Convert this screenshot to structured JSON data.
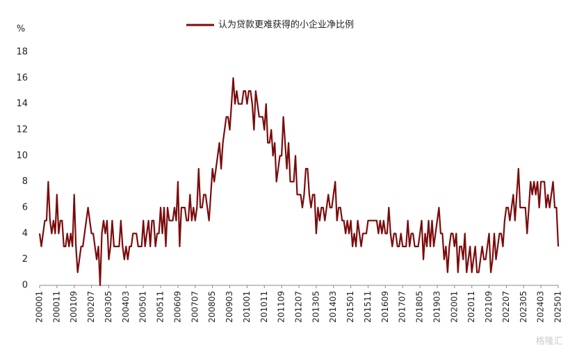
{
  "chart_data": {
    "type": "line",
    "ylabel": "%",
    "watermark": "格隆汇",
    "ylim": [
      0,
      18
    ],
    "yticks": [
      0,
      2,
      4,
      6,
      8,
      10,
      12,
      14,
      16,
      18
    ],
    "categories": [
      "200001",
      null,
      null,
      null,
      null,
      null,
      null,
      null,
      null,
      null,
      "200011",
      null,
      null,
      null,
      null,
      null,
      null,
      null,
      null,
      null,
      "200109",
      null,
      null,
      null,
      null,
      null,
      null,
      null,
      null,
      null,
      "200207",
      null,
      null,
      null,
      null,
      null,
      null,
      null,
      null,
      null,
      "200305",
      null,
      null,
      null,
      null,
      null,
      null,
      null,
      null,
      null,
      "200403",
      null,
      null,
      null,
      null,
      null,
      null,
      null,
      null,
      null,
      "200501",
      null,
      null,
      null,
      null,
      null,
      null,
      null,
      null,
      null,
      "200511",
      null,
      null,
      null,
      null,
      null,
      null,
      null,
      null,
      null,
      "200609",
      null,
      null,
      null,
      null,
      null,
      null,
      null,
      null,
      null,
      "200707",
      null,
      null,
      null,
      null,
      null,
      null,
      null,
      null,
      null,
      "200805",
      null,
      null,
      null,
      null,
      null,
      null,
      null,
      null,
      null,
      "200903",
      null,
      null,
      null,
      null,
      null,
      null,
      null,
      null,
      null,
      "201001",
      null,
      null,
      null,
      null,
      null,
      null,
      null,
      null,
      null,
      "201011",
      null,
      null,
      null,
      null,
      null,
      null,
      null,
      null,
      null,
      "201109",
      null,
      null,
      null,
      null,
      null,
      null,
      null,
      null,
      null,
      "201207",
      null,
      null,
      null,
      null,
      null,
      null,
      null,
      null,
      null,
      "201305",
      null,
      null,
      null,
      null,
      null,
      null,
      null,
      null,
      null,
      "201403",
      null,
      null,
      null,
      null,
      null,
      null,
      null,
      null,
      null,
      "201501",
      null,
      null,
      null,
      null,
      null,
      null,
      null,
      null,
      null,
      "201511",
      null,
      null,
      null,
      null,
      null,
      null,
      null,
      null,
      null,
      "201609",
      null,
      null,
      null,
      null,
      null,
      null,
      null,
      null,
      null,
      "201707",
      null,
      null,
      null,
      null,
      null,
      null,
      null,
      null,
      null,
      "201805",
      null,
      null,
      null,
      null,
      null,
      null,
      null,
      null,
      null,
      "201903",
      null,
      null,
      null,
      null,
      null,
      null,
      null,
      null,
      null,
      "202001",
      null,
      null,
      null,
      null,
      null,
      null,
      null,
      null,
      null,
      "202011",
      null,
      null,
      null,
      null,
      null,
      null,
      null,
      null,
      null,
      "202109",
      null,
      null,
      null,
      null,
      null,
      null,
      null,
      null,
      null,
      "202207",
      null,
      null,
      null,
      null,
      null,
      null,
      null,
      null,
      null,
      "202305",
      null,
      null,
      null,
      null,
      null,
      null,
      null,
      null,
      null,
      "202403",
      null,
      null,
      null,
      null,
      null,
      null,
      null,
      null,
      null,
      "202501"
    ],
    "series": [
      {
        "name": "认为贷款更难获得的小企业净比例",
        "color": "#7b0c0c",
        "values": [
          4,
          3,
          4,
          5,
          5,
          8,
          5,
          4,
          5,
          4,
          7,
          4,
          5,
          5,
          3,
          3,
          4,
          3,
          4,
          3,
          7,
          3,
          1,
          2,
          3,
          3,
          4,
          5,
          6,
          5,
          4,
          4,
          3,
          2,
          3,
          0,
          4,
          5,
          4,
          5,
          2,
          3,
          5,
          3,
          3,
          3,
          3,
          5,
          3,
          2,
          3,
          2,
          3,
          3,
          4,
          4,
          4,
          3,
          3,
          3,
          5,
          3,
          4,
          5,
          3,
          5,
          5,
          3,
          4,
          4,
          6,
          4,
          6,
          3,
          6,
          5,
          5,
          5,
          6,
          5,
          8,
          3,
          6,
          6,
          6,
          5,
          5,
          7,
          5,
          6,
          5,
          6,
          9,
          6,
          6,
          7,
          7,
          6,
          5,
          7,
          9,
          8,
          9,
          10,
          11,
          9,
          11,
          12,
          13,
          13,
          12,
          14,
          16,
          14,
          15,
          14,
          14,
          14,
          15,
          15,
          14,
          15,
          15,
          14,
          12,
          15,
          14,
          13,
          13,
          13,
          12,
          14,
          11,
          11,
          12,
          10,
          11,
          8,
          9,
          10,
          10,
          13,
          11,
          9,
          11,
          8,
          8,
          8,
          10,
          7,
          7,
          7,
          6,
          7,
          9,
          9,
          7,
          6,
          7,
          7,
          4,
          6,
          5,
          6,
          6,
          5,
          6,
          7,
          6,
          6,
          7,
          8,
          5,
          6,
          6,
          5,
          5,
          4,
          5,
          4,
          5,
          3,
          4,
          3,
          5,
          4,
          3,
          4,
          4,
          4,
          5,
          5,
          5,
          5,
          5,
          5,
          4,
          5,
          4,
          5,
          4,
          4,
          6,
          4,
          3,
          4,
          4,
          3,
          3,
          4,
          3,
          3,
          3,
          5,
          3,
          4,
          4,
          3,
          3,
          3,
          4,
          5,
          2,
          4,
          3,
          5,
          3,
          5,
          3,
          4,
          5,
          6,
          4,
          4,
          2,
          3,
          1,
          3,
          4,
          4,
          3,
          4,
          1,
          3,
          3,
          2,
          4,
          1,
          2,
          3,
          1,
          2,
          3,
          1,
          1,
          2,
          3,
          2,
          2,
          3,
          4,
          1,
          2,
          4,
          2,
          3,
          4,
          4,
          3,
          5,
          6,
          6,
          5,
          6,
          7,
          5,
          7,
          9,
          6,
          6,
          6,
          6,
          4,
          6,
          8,
          7,
          8,
          7,
          8,
          6,
          8,
          8,
          8,
          6,
          7,
          6,
          7,
          8,
          6,
          6,
          3
        ]
      }
    ]
  }
}
